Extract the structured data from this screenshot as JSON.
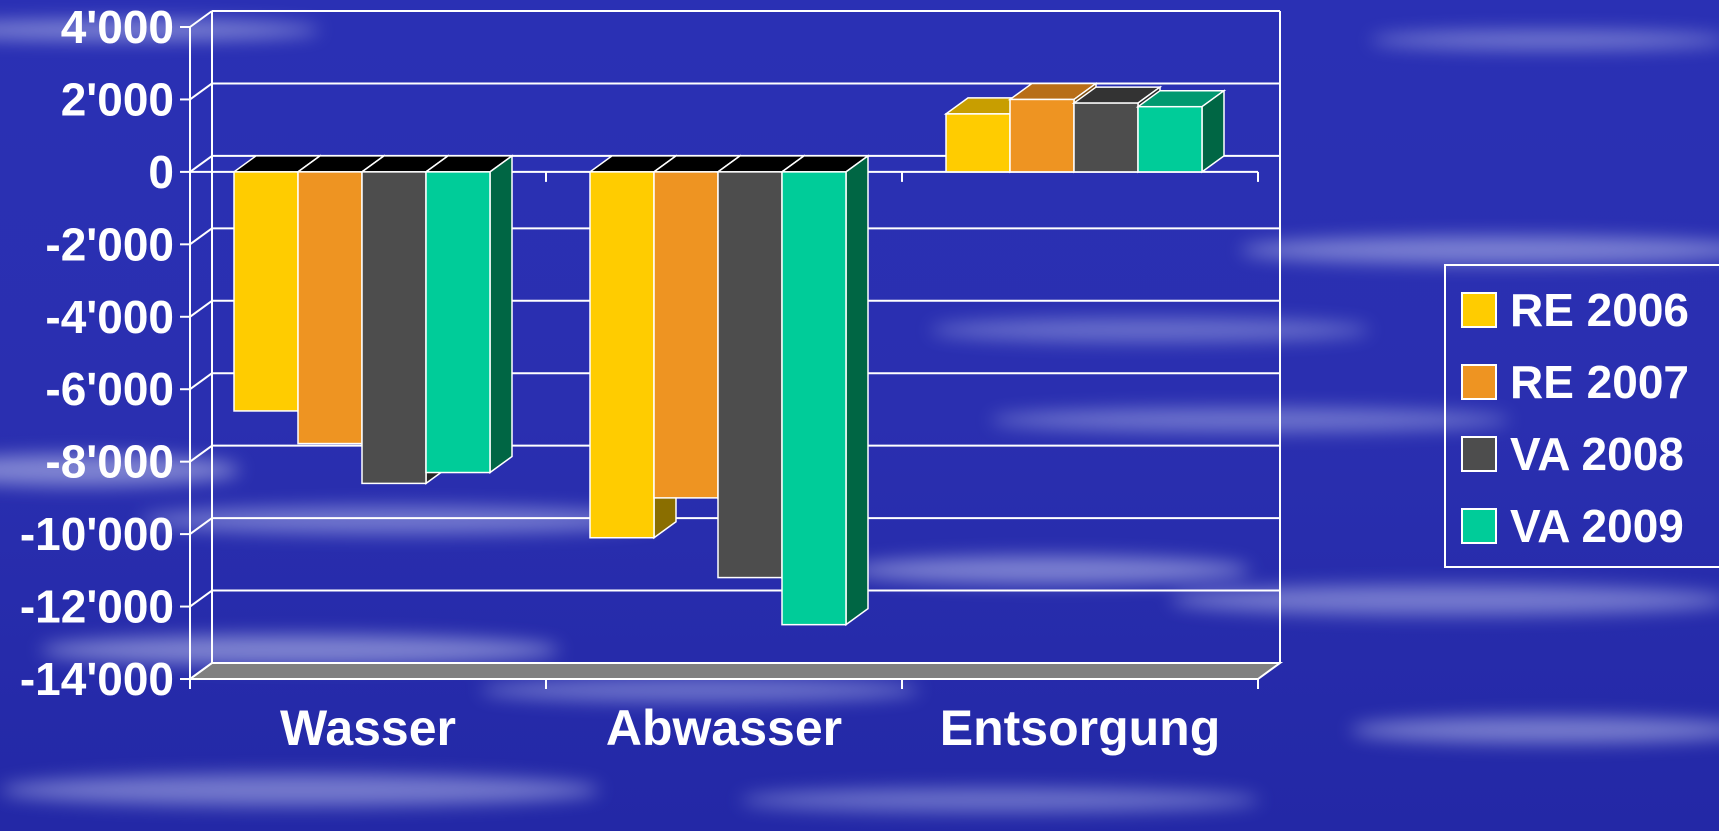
{
  "chart_data": {
    "type": "bar",
    "style": "3d-clustered-column",
    "categories": [
      "Wasser",
      "Abwasser",
      "Entsorgung"
    ],
    "series": [
      {
        "name": "RE 2006",
        "values": [
          -6600,
          -10100,
          1600
        ],
        "color": "#FFCC00",
        "side_color": "#8A6E00",
        "top_color": "#C89E00"
      },
      {
        "name": "RE 2007",
        "values": [
          -7500,
          -9000,
          2000
        ],
        "color": "#EE9422",
        "side_color": "#7E4E10",
        "top_color": "#B86E18"
      },
      {
        "name": "VA 2008",
        "values": [
          -8600,
          -11200,
          1900
        ],
        "color": "#4D4D4D",
        "side_color": "#262626",
        "top_color": "#333333"
      },
      {
        "name": "VA 2009",
        "values": [
          -8300,
          -12500,
          1800
        ],
        "color": "#00CC99",
        "side_color": "#006644",
        "top_color": "#009970"
      }
    ],
    "y_ticks": [
      "4'000",
      "2'000",
      "0",
      "-2'000",
      "-4'000",
      "-6'000",
      "-8'000",
      "-10'000",
      "-12'000",
      "-14'000"
    ],
    "y_tick_values": [
      4000,
      2000,
      0,
      -2000,
      -4000,
      -6000,
      -8000,
      -10000,
      -12000,
      -14000
    ],
    "ylim": [
      -14000,
      4000
    ],
    "grid": true,
    "legend_position": "right",
    "colors": {
      "background_dark": "#1E23A0",
      "background_mid": "#2E34B8",
      "gridline": "#FFFFFF",
      "floor": "#808080"
    }
  }
}
